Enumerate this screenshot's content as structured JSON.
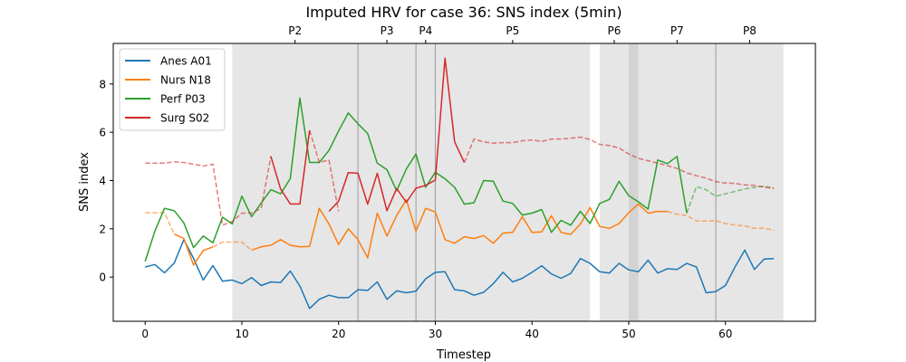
{
  "chart_data": {
    "type": "line",
    "title": "Imputed HRV for case 36: SNS index (5min)",
    "xlabel": "Timestep",
    "ylabel": "SNS index",
    "xlim": [
      -3.3,
      69.3
    ],
    "ylim": [
      -1.83,
      9.68
    ],
    "xticks": [
      0,
      10,
      20,
      30,
      40,
      50,
      60
    ],
    "yticks": [
      0,
      2,
      4,
      6,
      8
    ],
    "grid": false,
    "legend_position": "top-left",
    "phases": [
      {
        "label": "P2",
        "start": 9,
        "end": 22
      },
      {
        "label": "P3",
        "start": 22,
        "end": 28
      },
      {
        "label": "P4",
        "start": 28,
        "end": 30
      },
      {
        "label": "P5",
        "start": 30,
        "end": 46
      },
      {
        "label": "P6",
        "start": 47,
        "end": 50
      },
      {
        "label": "P7",
        "start": 51,
        "end": 59
      },
      {
        "label": "P8",
        "start": 59,
        "end": 66
      }
    ],
    "overlap_band": {
      "start": 50,
      "end": 51
    },
    "phase_boundaries": [
      22,
      28,
      30,
      59
    ],
    "series": [
      {
        "name": "Anes A01",
        "color": "#1f77b4",
        "observed": [
          [
            0,
            0.42
          ],
          [
            1,
            0.52
          ],
          [
            2,
            0.18
          ],
          [
            3,
            0.58
          ],
          [
            4,
            1.55
          ],
          [
            5,
            0.78
          ],
          [
            6,
            -0.12
          ],
          [
            7,
            0.48
          ],
          [
            8,
            -0.17
          ],
          [
            9,
            -0.12
          ],
          [
            10,
            -0.27
          ],
          [
            11,
            -0.02
          ],
          [
            12,
            -0.35
          ],
          [
            13,
            -0.2
          ],
          [
            14,
            -0.22
          ],
          [
            15,
            0.25
          ],
          [
            16,
            -0.37
          ],
          [
            17,
            -1.3
          ],
          [
            18,
            -0.92
          ],
          [
            19,
            -0.75
          ],
          [
            20,
            -0.85
          ],
          [
            21,
            -0.85
          ],
          [
            22,
            -0.52
          ],
          [
            23,
            -0.55
          ],
          [
            24,
            -0.2
          ],
          [
            25,
            -0.92
          ],
          [
            26,
            -0.57
          ],
          [
            27,
            -0.65
          ],
          [
            28,
            -0.58
          ],
          [
            29,
            -0.07
          ],
          [
            30,
            0.2
          ],
          [
            31,
            0.22
          ],
          [
            32,
            -0.52
          ],
          [
            33,
            -0.57
          ],
          [
            34,
            -0.75
          ],
          [
            35,
            -0.63
          ],
          [
            36,
            -0.27
          ],
          [
            37,
            0.2
          ],
          [
            38,
            -0.2
          ],
          [
            39,
            -0.05
          ],
          [
            40,
            0.2
          ],
          [
            41,
            0.47
          ],
          [
            42,
            0.13
          ],
          [
            43,
            -0.05
          ],
          [
            44,
            0.15
          ],
          [
            45,
            0.77
          ],
          [
            46,
            0.57
          ],
          [
            47,
            0.22
          ],
          [
            48,
            0.17
          ],
          [
            49,
            0.57
          ],
          [
            50,
            0.3
          ],
          [
            51,
            0.22
          ],
          [
            52,
            0.7
          ],
          [
            53,
            0.17
          ],
          [
            54,
            0.35
          ],
          [
            55,
            0.32
          ],
          [
            56,
            0.57
          ],
          [
            57,
            0.42
          ],
          [
            58,
            -0.65
          ],
          [
            59,
            -0.6
          ],
          [
            60,
            -0.35
          ],
          [
            61,
            0.43
          ],
          [
            62,
            1.12
          ],
          [
            63,
            0.32
          ],
          [
            64,
            0.75
          ],
          [
            65,
            0.77
          ]
        ],
        "imputed": []
      },
      {
        "name": "Nurs N18",
        "color": "#ff7f0e",
        "observed": [
          [
            3,
            1.78
          ],
          [
            4,
            1.6
          ],
          [
            5,
            0.5
          ],
          [
            6,
            1.1
          ],
          [
            7,
            1.25
          ],
          [
            11,
            1.12
          ],
          [
            12,
            1.25
          ],
          [
            13,
            1.32
          ],
          [
            14,
            1.55
          ],
          [
            15,
            1.32
          ],
          [
            16,
            1.25
          ],
          [
            17,
            1.27
          ],
          [
            18,
            2.85
          ],
          [
            19,
            2.2
          ],
          [
            20,
            1.35
          ],
          [
            21,
            2.0
          ],
          [
            22,
            1.55
          ],
          [
            23,
            0.8
          ],
          [
            24,
            2.65
          ],
          [
            25,
            1.7
          ],
          [
            26,
            2.55
          ],
          [
            27,
            3.2
          ],
          [
            28,
            1.9
          ],
          [
            29,
            2.85
          ],
          [
            30,
            2.7
          ],
          [
            31,
            1.55
          ],
          [
            32,
            1.4
          ],
          [
            33,
            1.67
          ],
          [
            34,
            1.6
          ],
          [
            35,
            1.72
          ],
          [
            36,
            1.4
          ],
          [
            37,
            1.82
          ],
          [
            38,
            1.85
          ],
          [
            39,
            2.5
          ],
          [
            40,
            1.85
          ],
          [
            41,
            1.87
          ],
          [
            42,
            2.55
          ],
          [
            43,
            1.85
          ],
          [
            44,
            1.77
          ],
          [
            45,
            2.2
          ],
          [
            46,
            2.88
          ],
          [
            47,
            2.1
          ],
          [
            48,
            2.02
          ],
          [
            49,
            2.22
          ],
          [
            50,
            2.67
          ],
          [
            51,
            3.02
          ],
          [
            52,
            2.65
          ],
          [
            53,
            2.72
          ],
          [
            54,
            2.72
          ]
        ],
        "imputed": [
          [
            0,
            2.67
          ],
          [
            1,
            2.67
          ],
          [
            2,
            2.67
          ],
          [
            3,
            1.78
          ],
          [
            7,
            1.25
          ],
          [
            8,
            1.45
          ],
          [
            9,
            1.45
          ],
          [
            10,
            1.45
          ],
          [
            11,
            1.12
          ],
          [
            54,
            2.72
          ],
          [
            55,
            2.6
          ],
          [
            56,
            2.55
          ],
          [
            57,
            2.32
          ],
          [
            58,
            2.32
          ],
          [
            59,
            2.33
          ],
          [
            60,
            2.22
          ],
          [
            61,
            2.15
          ],
          [
            62,
            2.12
          ],
          [
            63,
            2.02
          ],
          [
            64,
            2.02
          ],
          [
            65,
            1.95
          ]
        ]
      },
      {
        "name": "Perf P03",
        "color": "#2ca02c",
        "observed": [
          [
            0,
            0.65
          ],
          [
            1,
            1.9
          ],
          [
            2,
            2.85
          ],
          [
            3,
            2.75
          ],
          [
            4,
            2.25
          ],
          [
            5,
            1.22
          ],
          [
            6,
            1.7
          ],
          [
            7,
            1.42
          ],
          [
            8,
            2.48
          ],
          [
            9,
            2.2
          ],
          [
            10,
            3.35
          ],
          [
            11,
            2.5
          ],
          [
            12,
            3.07
          ],
          [
            13,
            3.62
          ],
          [
            14,
            3.45
          ],
          [
            15,
            4.08
          ],
          [
            16,
            7.42
          ],
          [
            17,
            4.75
          ],
          [
            18,
            4.75
          ],
          [
            19,
            5.25
          ],
          [
            20,
            6.05
          ],
          [
            21,
            6.8
          ],
          [
            22,
            6.35
          ],
          [
            23,
            5.95
          ],
          [
            24,
            4.72
          ],
          [
            25,
            4.45
          ],
          [
            26,
            3.58
          ],
          [
            27,
            4.48
          ],
          [
            28,
            5.1
          ],
          [
            29,
            3.72
          ],
          [
            30,
            4.35
          ],
          [
            31,
            4.07
          ],
          [
            32,
            3.72
          ],
          [
            33,
            3.02
          ],
          [
            34,
            3.08
          ],
          [
            35,
            4.0
          ],
          [
            36,
            3.97
          ],
          [
            37,
            3.15
          ],
          [
            38,
            3.05
          ],
          [
            39,
            2.57
          ],
          [
            40,
            2.65
          ],
          [
            41,
            2.8
          ],
          [
            42,
            1.85
          ],
          [
            43,
            2.35
          ],
          [
            44,
            2.15
          ],
          [
            45,
            2.72
          ],
          [
            46,
            2.22
          ],
          [
            47,
            3.05
          ],
          [
            48,
            3.22
          ],
          [
            49,
            3.97
          ],
          [
            50,
            3.37
          ],
          [
            51,
            3.12
          ],
          [
            52,
            2.82
          ],
          [
            53,
            4.85
          ],
          [
            54,
            4.7
          ],
          [
            55,
            5.0
          ],
          [
            56,
            2.65
          ]
        ],
        "imputed": [
          [
            56,
            2.65
          ],
          [
            57,
            3.75
          ],
          [
            58,
            3.62
          ],
          [
            59,
            3.35
          ],
          [
            60,
            3.45
          ],
          [
            61,
            3.55
          ],
          [
            62,
            3.65
          ],
          [
            63,
            3.72
          ],
          [
            64,
            3.77
          ],
          [
            65,
            3.68
          ]
        ]
      },
      {
        "name": "Surg S02",
        "color": "#d62728",
        "observed": [
          [
            13,
            5.0
          ],
          [
            14,
            3.65
          ],
          [
            15,
            3.03
          ],
          [
            16,
            3.03
          ],
          [
            17,
            6.08
          ],
          [
            19,
            2.72
          ],
          [
            20,
            3.15
          ],
          [
            21,
            4.33
          ],
          [
            22,
            4.3
          ],
          [
            23,
            3.02
          ],
          [
            24,
            4.3
          ],
          [
            25,
            2.75
          ],
          [
            26,
            3.67
          ],
          [
            27,
            3.1
          ],
          [
            28,
            3.68
          ],
          [
            29,
            3.8
          ],
          [
            30,
            4.02
          ],
          [
            31,
            9.07
          ],
          [
            32,
            5.6
          ],
          [
            33,
            4.75
          ]
        ],
        "imputed": [
          [
            0,
            4.72
          ],
          [
            1,
            4.72
          ],
          [
            2,
            4.72
          ],
          [
            3,
            4.78
          ],
          [
            4,
            4.75
          ],
          [
            5,
            4.68
          ],
          [
            6,
            4.6
          ],
          [
            7,
            4.68
          ],
          [
            8,
            2.15
          ],
          [
            9,
            2.3
          ],
          [
            10,
            2.65
          ],
          [
            11,
            2.65
          ],
          [
            12,
            2.85
          ],
          [
            13,
            5.0
          ],
          [
            17,
            6.08
          ],
          [
            18,
            4.75
          ],
          [
            19,
            4.85
          ],
          [
            20,
            2.72
          ],
          [
            33,
            4.75
          ],
          [
            34,
            5.72
          ],
          [
            35,
            5.6
          ],
          [
            36,
            5.55
          ],
          [
            37,
            5.57
          ],
          [
            38,
            5.57
          ],
          [
            39,
            5.65
          ],
          [
            40,
            5.68
          ],
          [
            41,
            5.62
          ],
          [
            42,
            5.72
          ],
          [
            43,
            5.72
          ],
          [
            44,
            5.75
          ],
          [
            45,
            5.8
          ],
          [
            46,
            5.7
          ],
          [
            47,
            5.5
          ],
          [
            48,
            5.45
          ],
          [
            49,
            5.35
          ],
          [
            50,
            5.1
          ],
          [
            51,
            4.92
          ],
          [
            52,
            4.82
          ],
          [
            53,
            4.72
          ],
          [
            54,
            4.62
          ],
          [
            55,
            4.5
          ],
          [
            56,
            4.32
          ],
          [
            57,
            4.2
          ],
          [
            58,
            4.1
          ],
          [
            59,
            3.95
          ],
          [
            60,
            3.9
          ],
          [
            61,
            3.88
          ],
          [
            62,
            3.82
          ],
          [
            63,
            3.8
          ],
          [
            64,
            3.72
          ],
          [
            65,
            3.68
          ]
        ]
      }
    ]
  }
}
